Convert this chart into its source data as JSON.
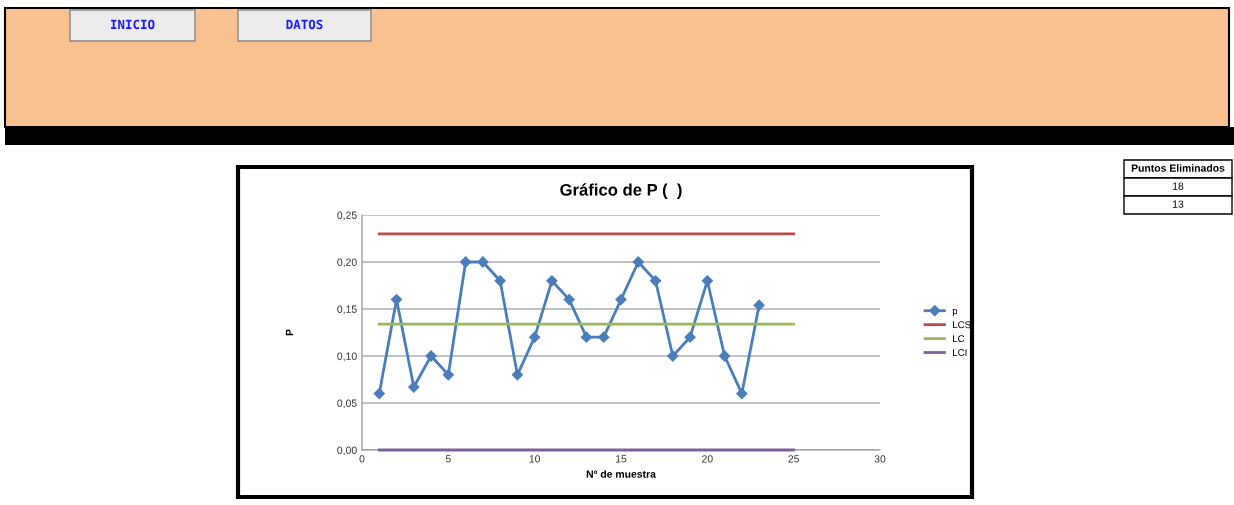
{
  "chart_data": {
    "type": "line",
    "title": "Gráfico de P (  )",
    "xlabel": "Nº de muestra",
    "ylabel": "P",
    "series": [
      {
        "name": "p",
        "color": "#4a7ebb",
        "marker": "diamond",
        "x": [
          1,
          2,
          3,
          4,
          5,
          6,
          7,
          8,
          9,
          10,
          11,
          12,
          13,
          14,
          15,
          16,
          17,
          18,
          19,
          20,
          21,
          22,
          23
        ],
        "values": [
          0.06,
          0.16,
          0.067,
          0.1,
          0.08,
          0.2,
          0.2,
          0.18,
          0.08,
          0.12,
          0.18,
          0.16,
          0.12,
          0.12,
          0.16,
          0.2,
          0.18,
          0.1,
          0.12,
          0.18,
          0.1,
          0.06,
          0.154
        ]
      },
      {
        "name": "LCS",
        "color": "#be4b48",
        "marker": "none",
        "x": [
          1,
          25
        ],
        "values": [
          0.23,
          0.23
        ]
      },
      {
        "name": "LC",
        "color": "#98b954",
        "marker": "none",
        "x": [
          1,
          25
        ],
        "values": [
          0.134,
          0.134
        ]
      },
      {
        "name": "LCI",
        "color": "#7d60a0",
        "marker": "none",
        "x": [
          1,
          25
        ],
        "values": [
          0,
          0
        ]
      }
    ],
    "xlim": [
      0,
      30
    ],
    "xticks": [
      0,
      5,
      10,
      15,
      20,
      25,
      30
    ],
    "ylim": [
      0,
      0.25
    ],
    "yticks": [
      {
        "value": 0,
        "label": "0,00"
      },
      {
        "value": 0.05,
        "label": "0,05"
      },
      {
        "value": 0.1,
        "label": "0,10"
      },
      {
        "value": 0.15,
        "label": "0,15"
      },
      {
        "value": 0.2,
        "label": "0,20"
      },
      {
        "value": 0.25,
        "label": "0,25"
      }
    ],
    "grid": "y",
    "legend": "right",
    "annotations": [
      "INICIO",
      "DATOS",
      "Puntos Eliminados",
      "18",
      "13"
    ]
  }
}
